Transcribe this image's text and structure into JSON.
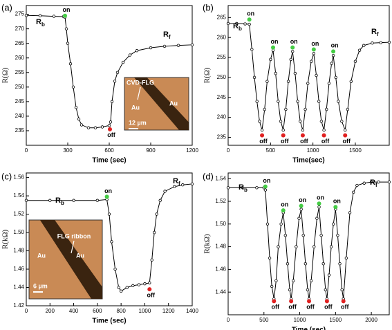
{
  "chart_data": [
    {
      "type": "line",
      "title": "(a)",
      "xlabel": "Time (sec)",
      "ylabel": "R(Ω)",
      "xlim": [
        0,
        1200
      ],
      "ylim": [
        230,
        278
      ],
      "xticks": [
        0,
        300,
        600,
        900,
        1200
      ],
      "yticks": [
        235,
        240,
        245,
        250,
        255,
        260,
        265,
        270,
        275
      ],
      "color": "#000000",
      "x": [
        0,
        100,
        200,
        270,
        280,
        290,
        300,
        320,
        340,
        360,
        380,
        400,
        450,
        500,
        550,
        600,
        610,
        620,
        640,
        660,
        700,
        750,
        800,
        900,
        1000,
        1100,
        1200
      ],
      "values": [
        274.6,
        274.5,
        274.3,
        274.2,
        274,
        270,
        265,
        258,
        250,
        243,
        239,
        237,
        236,
        236,
        236.3,
        236.8,
        238,
        245,
        252,
        255,
        258.5,
        261,
        262.5,
        263.5,
        264,
        264.3,
        264.5
      ],
      "markers": [
        {
          "label": "on",
          "x": 280,
          "y": 274.5,
          "color": "#44cc44"
        },
        {
          "label": "off",
          "x": 605,
          "y": 235.5,
          "color": "#e02020"
        }
      ],
      "rb": {
        "base": "R",
        "sub": "b"
      },
      "rf": {
        "base": "R",
        "sub": "f"
      },
      "inset": {
        "labels": [
          "CVD-FLG",
          "Au",
          "Au"
        ],
        "scale": "12 µm"
      }
    },
    {
      "type": "line",
      "title": "(b)",
      "xlabel": "Time(sec)",
      "ylabel": "R(Ω)",
      "xlim": [
        0,
        1900
      ],
      "ylim": [
        233,
        268
      ],
      "xticks": [
        0,
        500,
        1000,
        1500
      ],
      "yticks": [
        235,
        240,
        245,
        250,
        255,
        260,
        265
      ],
      "color": "#000000",
      "x": [
        0,
        100,
        200,
        250,
        280,
        310,
        340,
        370,
        400,
        430,
        460,
        500,
        530,
        560,
        590,
        620,
        650,
        680,
        710,
        740,
        760,
        790,
        820,
        850,
        880,
        910,
        940,
        980,
        1010,
        1040,
        1070,
        1100,
        1130,
        1160,
        1190,
        1220,
        1240,
        1270,
        1300,
        1340,
        1380,
        1410,
        1450,
        1500,
        1550,
        1600,
        1700,
        1800,
        1900
      ],
      "values": [
        263.5,
        263.5,
        263.4,
        263.3,
        257,
        250,
        244,
        239,
        236.8,
        242,
        249,
        254.5,
        256.8,
        251,
        244,
        239,
        236.8,
        242,
        249,
        254.5,
        256.5,
        251,
        244,
        239,
        236.8,
        242,
        248.5,
        254,
        256,
        250.5,
        244,
        239,
        236.8,
        242,
        248.5,
        253.5,
        255.5,
        250,
        244,
        239,
        236.8,
        242,
        249,
        254,
        256.8,
        258,
        258.6,
        258.7,
        258.8
      ],
      "markers": [
        {
          "label": "on",
          "x": 250,
          "y": 264.5,
          "color": "#44cc44"
        },
        {
          "label": "off",
          "x": 400,
          "y": 235.5,
          "color": "#e02020"
        },
        {
          "label": "on",
          "x": 530,
          "y": 257.5,
          "color": "#44cc44"
        },
        {
          "label": "off",
          "x": 650,
          "y": 235.5,
          "color": "#e02020"
        },
        {
          "label": "on",
          "x": 760,
          "y": 257.5,
          "color": "#44cc44"
        },
        {
          "label": "off",
          "x": 880,
          "y": 235.5,
          "color": "#e02020"
        },
        {
          "label": "on",
          "x": 1010,
          "y": 257,
          "color": "#44cc44"
        },
        {
          "label": "off",
          "x": 1130,
          "y": 235.5,
          "color": "#e02020"
        },
        {
          "label": "on",
          "x": 1240,
          "y": 256.5,
          "color": "#44cc44"
        },
        {
          "label": "off",
          "x": 1380,
          "y": 235.5,
          "color": "#e02020"
        }
      ],
      "rb": {
        "base": "R",
        "sub": "b"
      },
      "rf": {
        "base": "R",
        "sub": "f"
      }
    },
    {
      "type": "line",
      "title": "(c)",
      "xlabel": "Time (sec)",
      "ylabel": "R(kΩ)",
      "xlim": [
        0,
        1400
      ],
      "ylim": [
        1.42,
        1.565
      ],
      "xticks": [
        0,
        200,
        400,
        600,
        800,
        1000,
        1200,
        1400
      ],
      "yticks": [
        1.42,
        1.44,
        1.46,
        1.48,
        {
          "value": 1.5,
          "label": "1.50"
        },
        1.52,
        1.54,
        1.56
      ],
      "color": "#000000",
      "x": [
        0,
        200,
        400,
        600,
        680,
        700,
        720,
        750,
        780,
        800,
        850,
        900,
        950,
        1000,
        1040,
        1060,
        1080,
        1100,
        1130,
        1170,
        1250,
        1320,
        1400
      ],
      "values": [
        1.535,
        1.535,
        1.535,
        1.535,
        1.536,
        1.52,
        1.49,
        1.46,
        1.44,
        1.436,
        1.44,
        1.442,
        1.443,
        1.444,
        1.445,
        1.47,
        1.5,
        1.52,
        1.535,
        1.545,
        1.55,
        1.552,
        1.553
      ],
      "markers": [
        {
          "label": "on",
          "x": 680,
          "y": 1.539,
          "color": "#44cc44"
        },
        {
          "label": "off",
          "x": 1040,
          "y": 1.438,
          "color": "#e02020"
        }
      ],
      "rb": {
        "base": "R",
        "sub": "b"
      },
      "rf": {
        "base": "R",
        "sub": "f"
      },
      "inset": {
        "labels": [
          "FLG ribbon",
          "Au",
          "Au"
        ],
        "scale": "6 µm"
      }
    },
    {
      "type": "line",
      "title": "(d)",
      "xlabel": "Time (sec)",
      "ylabel": "R(kΩ)",
      "xlim": [
        0,
        2250
      ],
      "ylim": [
        1.42,
        1.545
      ],
      "xticks": [
        0,
        500,
        1000,
        1500,
        2000
      ],
      "yticks": [
        1.44,
        1.46,
        1.48,
        {
          "value": 1.5,
          "label": "1.50"
        },
        1.52,
        1.54
      ],
      "color": "#000000",
      "x": [
        0,
        200,
        400,
        500,
        520,
        550,
        580,
        610,
        640,
        670,
        700,
        740,
        770,
        800,
        830,
        860,
        880,
        910,
        950,
        990,
        1020,
        1050,
        1080,
        1110,
        1130,
        1160,
        1200,
        1240,
        1270,
        1300,
        1330,
        1360,
        1380,
        1410,
        1440,
        1470,
        1500,
        1530,
        1560,
        1590,
        1610,
        1650,
        1700,
        1750,
        1800,
        1900,
        2000,
        2100,
        2250
      ],
      "values": [
        1.532,
        1.532,
        1.532,
        1.532,
        1.53,
        1.5,
        1.47,
        1.445,
        1.434,
        1.45,
        1.48,
        1.5,
        1.51,
        1.49,
        1.465,
        1.442,
        1.434,
        1.45,
        1.48,
        1.505,
        1.513,
        1.49,
        1.465,
        1.442,
        1.434,
        1.45,
        1.48,
        1.505,
        1.515,
        1.49,
        1.465,
        1.442,
        1.434,
        1.455,
        1.48,
        1.5,
        1.513,
        1.49,
        1.465,
        1.442,
        1.434,
        1.47,
        1.51,
        1.528,
        1.534,
        1.536,
        1.537,
        1.537,
        1.537
      ],
      "markers": [
        {
          "label": "on",
          "x": 520,
          "y": 1.533,
          "color": "#44cc44"
        },
        {
          "label": "off",
          "x": 640,
          "y": 1.432,
          "color": "#e02020"
        },
        {
          "label": "on",
          "x": 770,
          "y": 1.512,
          "color": "#44cc44"
        },
        {
          "label": "off",
          "x": 880,
          "y": 1.432,
          "color": "#e02020"
        },
        {
          "label": "on",
          "x": 1020,
          "y": 1.516,
          "color": "#44cc44"
        },
        {
          "label": "off",
          "x": 1130,
          "y": 1.432,
          "color": "#e02020"
        },
        {
          "label": "on",
          "x": 1270,
          "y": 1.518,
          "color": "#44cc44"
        },
        {
          "label": "off",
          "x": 1380,
          "y": 1.432,
          "color": "#e02020"
        },
        {
          "label": "on",
          "x": 1500,
          "y": 1.515,
          "color": "#44cc44"
        },
        {
          "label": "off",
          "x": 1610,
          "y": 1.432,
          "color": "#e02020"
        }
      ],
      "rb": {
        "base": "R",
        "sub": "b"
      },
      "rf": {
        "base": "R",
        "sub": "f"
      }
    }
  ]
}
